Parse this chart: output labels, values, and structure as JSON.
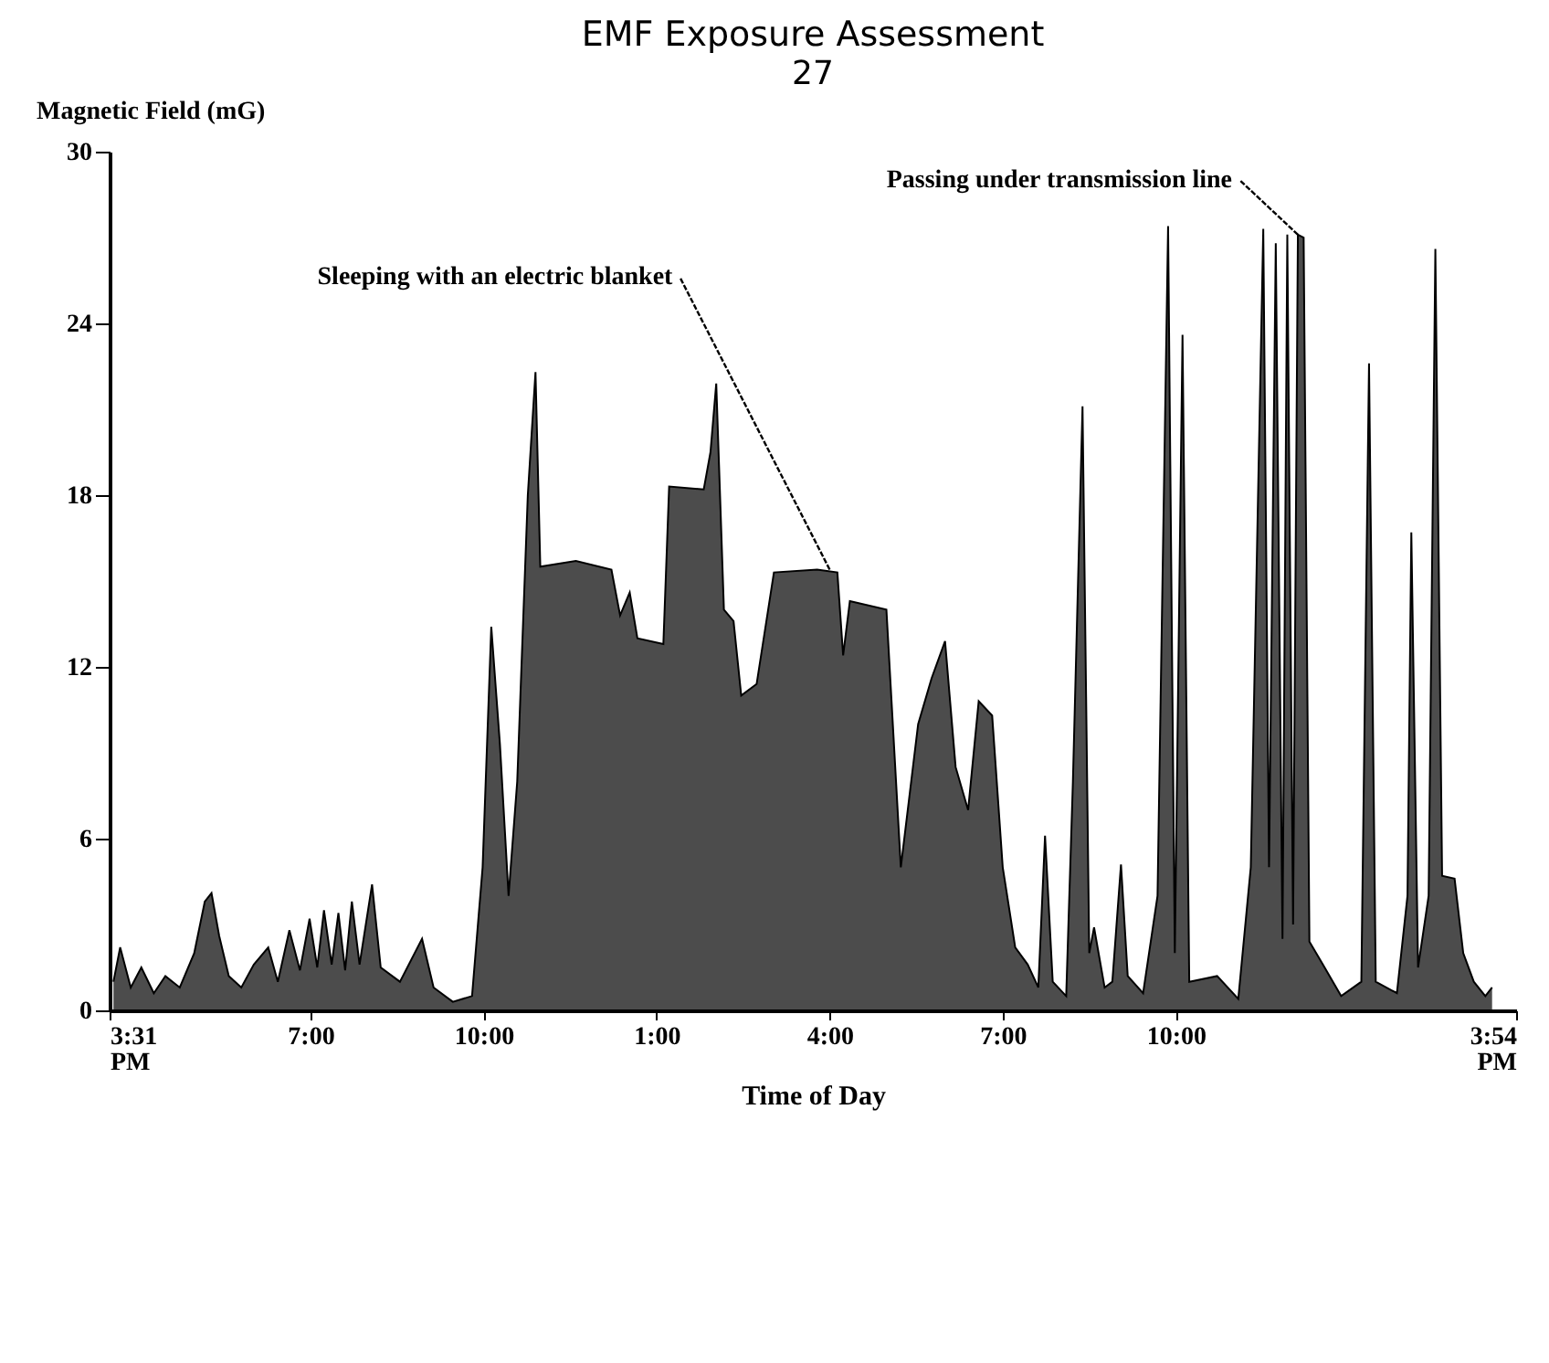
{
  "chart_data": {
    "type": "area",
    "title": "EMF Exposure Assessment",
    "xlabel": "Time of Day",
    "ylabel": "Magnetic Field (mG)",
    "annotations": [
      "27",
      {
        "text": "Sleeping with an electric blanket",
        "x": "2000-01-02T04:00",
        "y": 15.4
      },
      {
        "text": "Passing under transmission line",
        "x": "2000-01-02T12:07",
        "y": 27.1
      }
    ],
    "x": [
      "2000-01-01T15:35",
      "2000-01-01T15:42",
      "2000-01-01T15:53",
      "2000-01-01T16:04",
      "2000-01-01T16:17",
      "2000-01-01T16:29",
      "2000-01-01T16:44",
      "2000-01-01T16:59",
      "2000-01-01T17:10",
      "2000-01-01T17:17",
      "2000-01-01T17:25",
      "2000-01-01T17:35",
      "2000-01-01T17:48",
      "2000-01-01T18:01",
      "2000-01-01T18:16",
      "2000-01-01T18:26",
      "2000-01-01T18:38",
      "2000-01-01T18:49",
      "2000-01-01T18:59",
      "2000-01-01T19:07",
      "2000-01-01T19:14",
      "2000-01-01T19:22",
      "2000-01-01T19:29",
      "2000-01-01T19:36",
      "2000-01-01T19:43",
      "2000-01-01T19:51",
      "2000-01-01T20:04",
      "2000-01-01T20:13",
      "2000-01-01T20:33",
      "2000-01-01T20:56",
      "2000-01-01T21:08",
      "2000-01-01T21:28",
      "2000-01-01T21:48",
      "2000-01-01T21:59",
      "2000-01-01T22:08",
      "2000-01-01T22:17",
      "2000-01-01T22:26",
      "2000-01-01T22:35",
      "2000-01-01T22:46",
      "2000-01-01T22:54",
      "2000-01-01T22:59",
      "2000-01-01T23:36",
      "2000-01-02T00:13",
      "2000-01-02T00:22",
      "2000-01-02T00:32",
      "2000-01-02T00:40",
      "2000-01-02T01:07",
      "2000-01-02T01:13",
      "2000-01-02T01:49",
      "2000-01-02T01:56",
      "2000-01-02T02:02",
      "2000-01-02T02:10",
      "2000-01-02T02:20",
      "2000-01-02T02:28",
      "2000-01-02T02:44",
      "2000-01-02T03:02",
      "2000-01-02T03:47",
      "2000-01-02T04:08",
      "2000-01-02T04:14",
      "2000-01-02T04:21",
      "2000-01-02T04:59",
      "2000-01-02T05:14",
      "2000-01-02T05:32",
      "2000-01-02T05:46",
      "2000-01-02T06:00",
      "2000-01-02T06:11",
      "2000-01-02T06:24",
      "2000-01-02T06:35",
      "2000-01-02T06:49",
      "2000-01-02T07:00",
      "2000-01-02T07:13",
      "2000-01-02T07:26",
      "2000-01-02T07:37",
      "2000-01-02T07:44",
      "2000-01-02T07:52",
      "2000-01-02T08:06",
      "2000-01-02T08:13",
      "2000-01-02T08:23",
      "2000-01-02T08:30",
      "2000-01-02T08:35",
      "2000-01-02T08:46",
      "2000-01-02T08:54",
      "2000-01-02T09:03",
      "2000-01-02T09:10",
      "2000-01-02T09:26",
      "2000-01-02T09:41",
      "2000-01-02T09:52",
      "2000-01-02T09:59",
      "2000-01-02T10:07",
      "2000-01-02T10:14",
      "2000-01-02T10:43",
      "2000-01-02T11:05",
      "2000-01-02T11:18",
      "2000-01-02T11:31",
      "2000-01-02T11:37",
      "2000-01-02T11:44",
      "2000-01-02T11:51",
      "2000-01-02T11:56",
      "2000-01-02T12:02",
      "2000-01-02T12:07",
      "2000-01-02T12:13",
      "2000-01-02T12:19",
      "2000-01-02T12:33",
      "2000-01-02T12:52",
      "2000-01-02T13:13",
      "2000-01-02T13:21",
      "2000-01-02T13:28",
      "2000-01-02T13:50",
      "2000-01-02T14:01",
      "2000-01-02T14:05",
      "2000-01-02T14:12",
      "2000-01-02T14:23",
      "2000-01-02T14:30",
      "2000-01-02T14:37",
      "2000-01-02T14:50",
      "2000-01-02T14:59",
      "2000-01-02T15:10",
      "2000-01-02T15:22",
      "2000-01-02T15:29"
    ],
    "series": [
      {
        "color": "#000000",
        "values": [
          1.0,
          2.2,
          0.8,
          1.5,
          0.6,
          1.2,
          0.8,
          2.0,
          3.8,
          4.1,
          2.6,
          1.2,
          0.8,
          1.6,
          2.2,
          1.0,
          2.8,
          1.4,
          3.2,
          1.5,
          3.5,
          1.6,
          3.4,
          1.4,
          3.8,
          1.6,
          4.4,
          1.5,
          1.0,
          2.5,
          0.8,
          0.3,
          0.5,
          5.0,
          13.4,
          9.3,
          4.0,
          8.0,
          18.0,
          22.3,
          15.5,
          15.7,
          15.4,
          13.8,
          14.6,
          13.0,
          12.8,
          18.3,
          18.2,
          19.5,
          21.9,
          14.0,
          13.6,
          11.0,
          11.4,
          15.3,
          15.4,
          15.3,
          12.4,
          14.3,
          14.0,
          5.0,
          10.0,
          11.6,
          12.9,
          8.5,
          7.0,
          10.8,
          10.3,
          5.0,
          2.2,
          1.6,
          0.8,
          6.1,
          1.0,
          0.5,
          8.0,
          21.1,
          2.0,
          2.9,
          0.8,
          1.0,
          5.1,
          1.2,
          0.6,
          4.0,
          27.4,
          2.0,
          23.6,
          1.0,
          1.2,
          0.4,
          5.0,
          27.3,
          5.0,
          26.8,
          2.5,
          27.1,
          3.0,
          27.1,
          27.0,
          2.4,
          1.6,
          0.5,
          1.0,
          22.6,
          1.0,
          0.6,
          4.0,
          16.7,
          1.5,
          4.0,
          26.6,
          4.7,
          4.6,
          2.0,
          1.0,
          0.5,
          0.8
        ]
      }
    ],
    "xlim": [
      "2000-01-01T15:31",
      "2000-01-02T15:54"
    ],
    "xticks": [
      {
        "value": "2000-01-01T15:31",
        "label": "3:31 PM"
      },
      {
        "value": "2000-01-01T19:00",
        "label": "7:00"
      },
      {
        "value": "2000-01-01T22:00",
        "label": "10:00"
      },
      {
        "value": "2000-01-02T01:00",
        "label": "1:00"
      },
      {
        "value": "2000-01-02T04:00",
        "label": "4:00"
      },
      {
        "value": "2000-01-02T07:00",
        "label": "7:00"
      },
      {
        "value": "2000-01-02T10:00",
        "label": "10:00"
      },
      {
        "value": "2000-01-02T15:54",
        "label": "3:54 PM"
      }
    ],
    "ylim": [
      0,
      30
    ],
    "yticks": [
      0,
      6,
      12,
      18,
      24,
      30
    ],
    "grid": false
  }
}
